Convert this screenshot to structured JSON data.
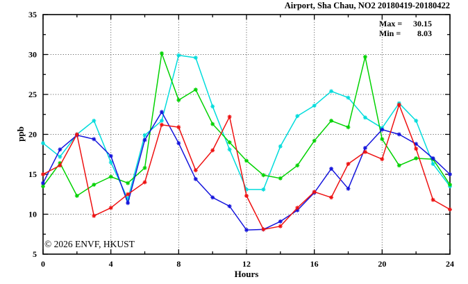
{
  "title": "Airport, Sha Chau, NO2 20180419-20180422",
  "annotations": {
    "max_label": "Max =",
    "max_value": "30.15",
    "min_label": "Min =",
    "min_value": "8.03"
  },
  "watermark": "© 2026 ENVF, HKUST",
  "chart_data": {
    "type": "line",
    "title": "Airport, Sha Chau, NO2 20180419-20180422",
    "xlabel": "Hours",
    "ylabel": "ppb",
    "xlim": [
      0,
      24
    ],
    "ylim": [
      5,
      35
    ],
    "x_major_ticks": [
      0,
      4,
      8,
      12,
      16,
      20,
      24
    ],
    "x_minor_ticks": [
      2,
      6,
      10,
      14,
      18,
      22
    ],
    "y_major_ticks": [
      5,
      10,
      15,
      20,
      25,
      30,
      35
    ],
    "y_minor_ticks": [
      7.5,
      12.5,
      17.5,
      22.5,
      27.5,
      32.5
    ],
    "grid_x_lines": [
      4,
      8,
      12,
      16,
      20
    ],
    "grid_y_lines": [
      10,
      15,
      20,
      25,
      30
    ],
    "legend_position": "none",
    "grid": true,
    "stat_max": 30.15,
    "stat_min": 8.03,
    "x": [
      0,
      1,
      2,
      3,
      4,
      5,
      6,
      7,
      8,
      9,
      10,
      11,
      12,
      13,
      14,
      15,
      16,
      17,
      18,
      19,
      20,
      21,
      22,
      23,
      24
    ],
    "series": [
      {
        "name": "cyan",
        "color": "#00dcdc",
        "values": [
          18.9,
          17.2,
          20.0,
          21.7,
          16.5,
          11.9,
          19.9,
          21.7,
          29.9,
          29.6,
          23.5,
          18.1,
          13.1,
          13.1,
          18.5,
          22.3,
          23.6,
          25.4,
          24.6,
          22.1,
          20.8,
          23.9,
          21.7,
          16.3,
          13.5
        ]
      },
      {
        "name": "green",
        "color": "#00d200",
        "values": [
          13.5,
          16.4,
          12.3,
          13.7,
          14.7,
          13.9,
          15.8,
          30.15,
          24.3,
          25.6,
          21.3,
          19.0,
          16.7,
          14.9,
          14.5,
          16.1,
          19.2,
          21.7,
          20.9,
          29.7,
          19.4,
          16.1,
          17.0,
          16.9,
          13.7
        ]
      },
      {
        "name": "blue",
        "color": "#1414dc",
        "values": [
          13.9,
          18.1,
          19.9,
          19.4,
          17.3,
          11.4,
          19.3,
          22.8,
          18.9,
          14.4,
          12.1,
          11.0,
          8.03,
          8.1,
          9.1,
          10.5,
          12.7,
          15.7,
          13.2,
          18.3,
          20.6,
          20.0,
          18.8,
          17.0,
          15.0
        ]
      },
      {
        "name": "red",
        "color": "#ee1111",
        "values": [
          15.0,
          16.1,
          20.0,
          9.8,
          10.8,
          12.5,
          14.0,
          21.2,
          20.9,
          15.5,
          18.0,
          22.2,
          12.3,
          8.1,
          8.5,
          10.8,
          12.8,
          12.1,
          16.3,
          17.8,
          16.9,
          23.7,
          18.2,
          11.8,
          10.6
        ]
      }
    ]
  },
  "colors": {
    "frame": "#000000",
    "grid": "#4a4a4a",
    "watermark": "#c7cad6",
    "background": "#ffffff"
  }
}
